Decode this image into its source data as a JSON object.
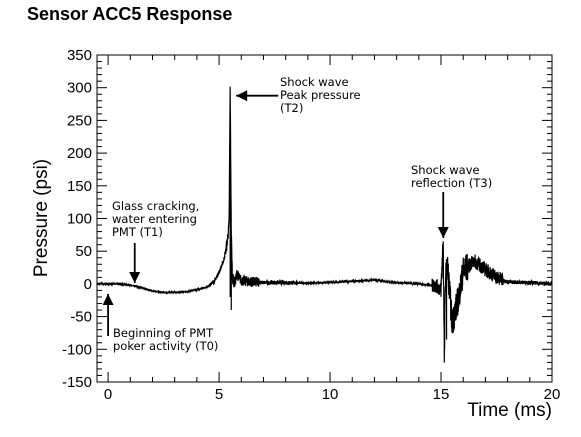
{
  "chart_data": {
    "type": "line",
    "title": "Sensor ACC5 Response",
    "xlabel": "Time (ms)",
    "ylabel": "Pressure (psi)",
    "xlim": [
      -0.5,
      20
    ],
    "ylim": [
      -150,
      350
    ],
    "xticks": [
      "0",
      "5",
      "10",
      "15",
      "20"
    ],
    "yticks": [
      "-150",
      "-100",
      "-50",
      "0",
      "50",
      "100",
      "150",
      "200",
      "250",
      "300",
      "350"
    ],
    "grid": false,
    "legend": "none",
    "line_color": "#000000",
    "series": [
      {
        "x": [
          -0.5,
          0,
          0.5,
          1.0,
          1.5,
          2.0,
          2.5,
          3.0,
          3.5,
          4.0,
          4.5,
          4.8,
          5.0,
          5.2,
          5.35,
          5.45,
          5.5,
          5.55,
          5.6,
          5.7,
          5.8,
          6.0,
          6.5,
          7.0,
          8.0,
          9.0,
          10.0,
          11.0,
          12.0,
          13.0,
          14.0,
          14.8,
          15.0,
          15.1,
          15.15,
          15.2,
          15.3,
          15.5,
          15.8,
          16.0,
          16.5,
          17.0,
          17.5,
          18.0,
          19.0,
          20.0
        ],
        "y": [
          0,
          0,
          0,
          -2,
          -6,
          -11,
          -13,
          -13,
          -12,
          -9,
          -4,
          5,
          18,
          35,
          60,
          90,
          300,
          80,
          10,
          0,
          15,
          5,
          3,
          2,
          2,
          1,
          2,
          4,
          6,
          2,
          0,
          -3,
          -10,
          65,
          -120,
          10,
          25,
          -60,
          -20,
          20,
          35,
          22,
          10,
          3,
          2,
          0
        ]
      }
    ],
    "annotations": [
      {
        "lines": [
          "Shock wave",
          "Peak pressure",
          "(T2)"
        ],
        "x": 5.5,
        "y": 300
      },
      {
        "lines": [
          "Shock wave",
          "reflection (T3)"
        ],
        "x": 15.1,
        "y": 65
      },
      {
        "lines": [
          "Glass cracking,",
          "water entering",
          "PMT (T1)"
        ],
        "x": 1.2,
        "y": -2
      },
      {
        "lines": [
          "Beginning of PMT",
          "poker activity (T0)"
        ],
        "x": 0,
        "y": 0
      }
    ]
  }
}
